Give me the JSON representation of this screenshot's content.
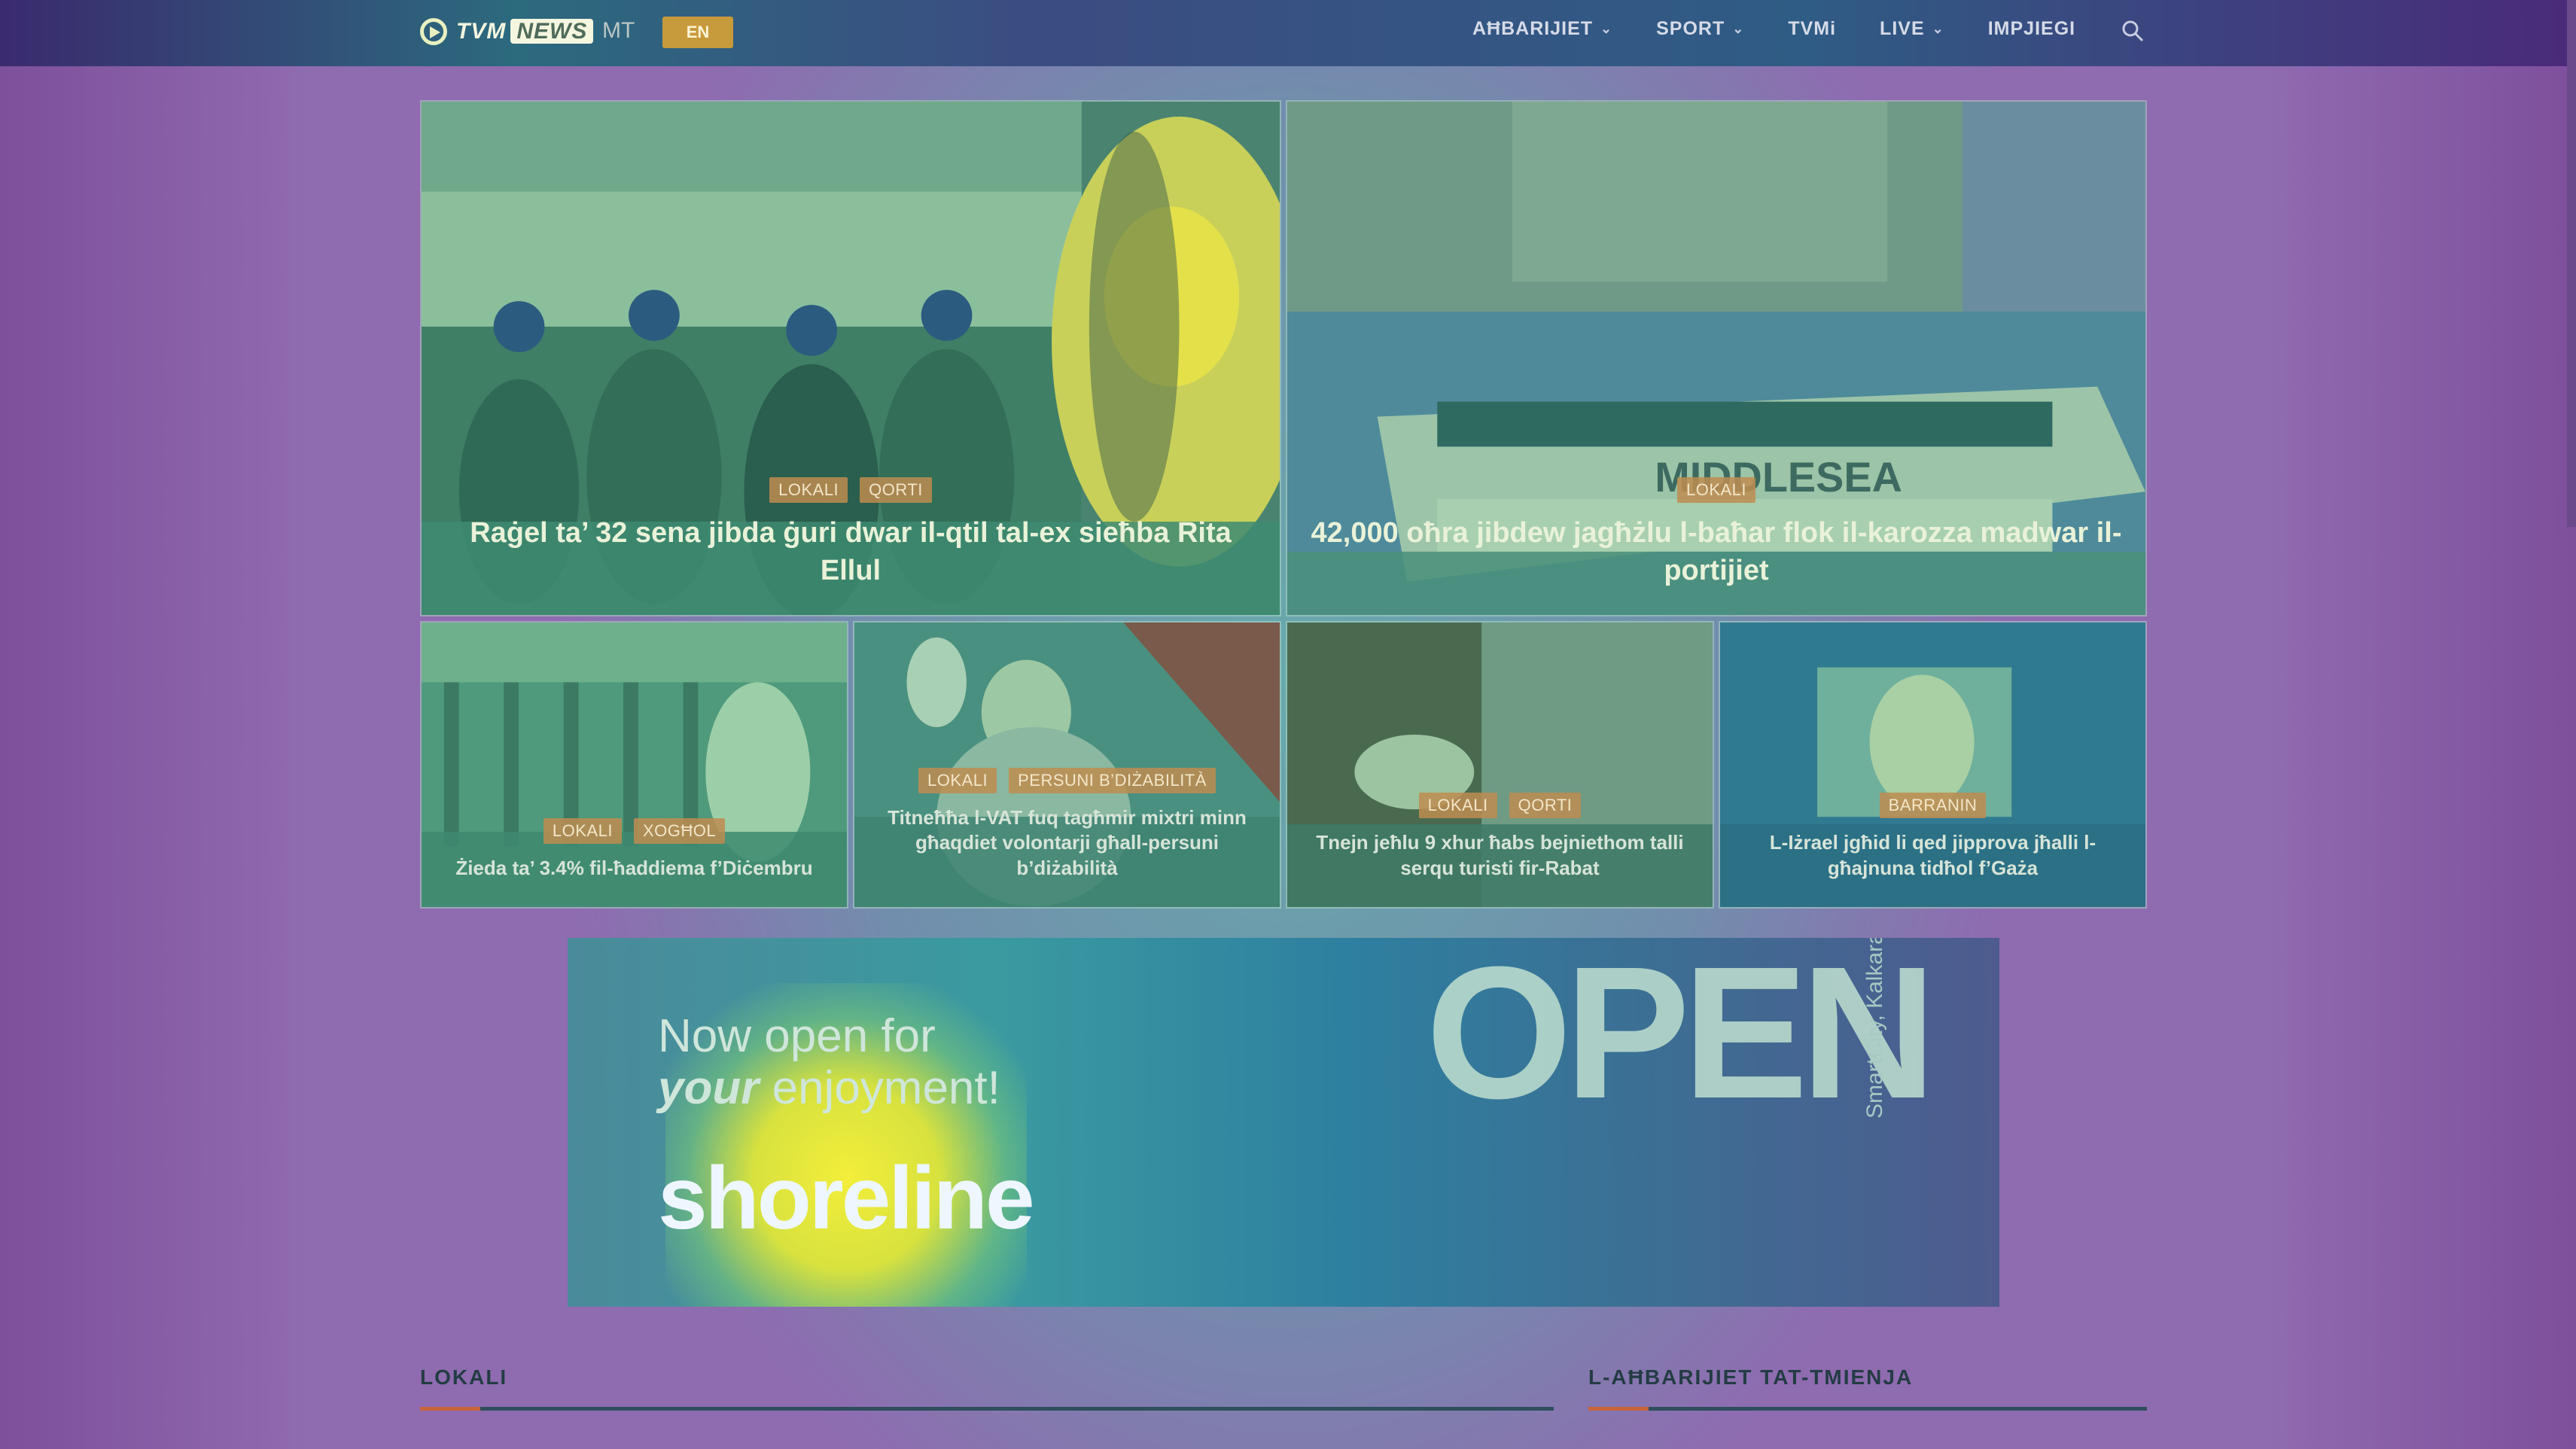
{
  "header": {
    "logo_text": "TVM",
    "logo_text_bold": "NEWS",
    "lang_current": "MT",
    "lang_switch": "EN",
    "nav": [
      {
        "label": "AĦBARIJIET",
        "has_dropdown": true
      },
      {
        "label": "SPORT",
        "has_dropdown": true
      },
      {
        "label": "TVMi",
        "has_dropdown": false
      },
      {
        "label": "LIVE",
        "has_dropdown": true
      },
      {
        "label": "IMPJIEGI",
        "has_dropdown": false
      }
    ]
  },
  "hero": [
    {
      "tags": [
        "LOKALI",
        "QORTI"
      ],
      "title": "Raġel ta’ 32 sena jibda ġuri dwar il-qtil tal-ex sieħba Rita Ellul"
    },
    {
      "tags": [
        "LOKALI"
      ],
      "title": "42,000 oħra jibdew jagħżlu l-baħar flok il-karozza madwar il-portijiet"
    },
    {
      "tags": [
        "LOKALI",
        "XOGĦOL"
      ],
      "title": "Żieda ta’ 3.4% fil-ħaddiema f’Diċembru"
    },
    {
      "tags": [
        "LOKALI",
        "PERSUNI B’DIŻABILITÀ"
      ],
      "title": "Titneħħa l-VAT fuq tagħmir mixtri minn għaqdiet volontarji għall-persuni b’diżabilità"
    },
    {
      "tags": [
        "LOKALI",
        "QORTI"
      ],
      "title": "Tnejn jeħlu 9 xhur ħabs bejniethom talli serqu turisti fir-Rabat"
    },
    {
      "tags": [
        "BARRANIN"
      ],
      "title": "L-Iżrael jgħid li qed jipprova jħalli l-għajnuna tidħol f’Gaża"
    }
  ],
  "banner": {
    "line1": "Now open for",
    "line2_em": "your",
    "line2_rest": " enjoyment!",
    "brand": "shoreline",
    "big_text": "OPEN",
    "location": "SmartCity, Kalkara"
  },
  "sections": {
    "left": "LOKALI",
    "right": "L-AĦBARIJIET TAT-TMIENJA"
  },
  "colors": {
    "tag_bg": "#be8c50",
    "lang_button": "#c79a3c",
    "section_accent": "#c8643a"
  }
}
